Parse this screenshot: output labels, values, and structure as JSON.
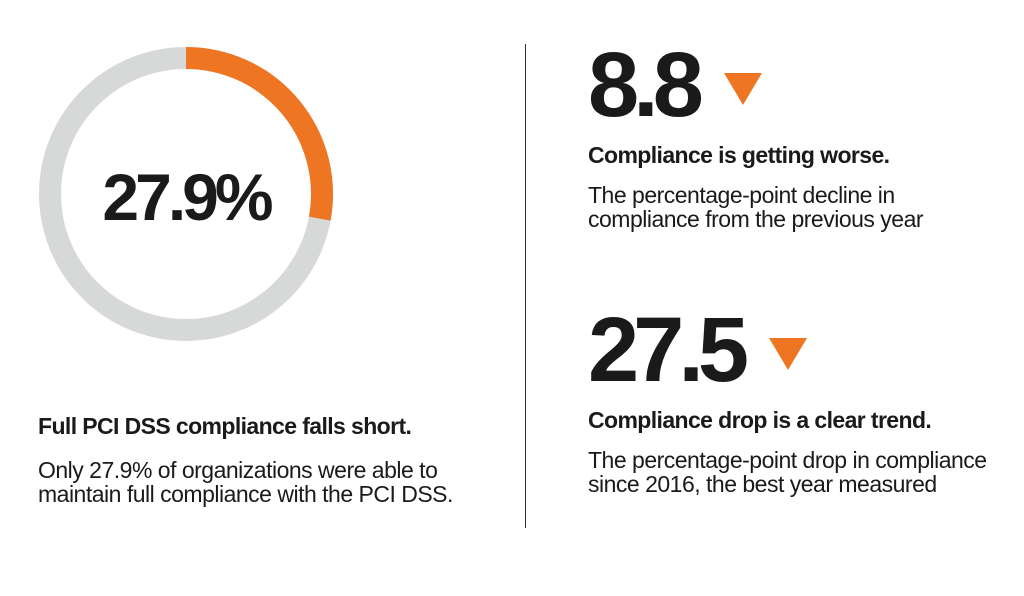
{
  "colors": {
    "accent": "#ee7623",
    "track": "#d7d8d8",
    "text": "#1a1a1a",
    "divider": "#333333"
  },
  "chart_data": {
    "type": "pie",
    "values": [
      27.9,
      72.1
    ],
    "center_label": "27.9%",
    "colors": [
      "#ee7623",
      "#d7d8d8"
    ]
  },
  "left": {
    "heading": "Full PCI DSS compliance falls short.",
    "body": "Only 27.9% of organizations were able to maintain full compliance with the PCI DSS."
  },
  "stats": [
    {
      "value": "8.8",
      "arrow_icon": "triangle-down-icon",
      "heading": "Compliance is getting worse.",
      "body": "The percentage-point decline in compliance from the previous year"
    },
    {
      "value": "27.5",
      "arrow_icon": "triangle-down-icon",
      "heading": "Compliance drop is a clear trend.",
      "body": "The percentage-point drop in compliance since 2016, the best year measured"
    }
  ]
}
